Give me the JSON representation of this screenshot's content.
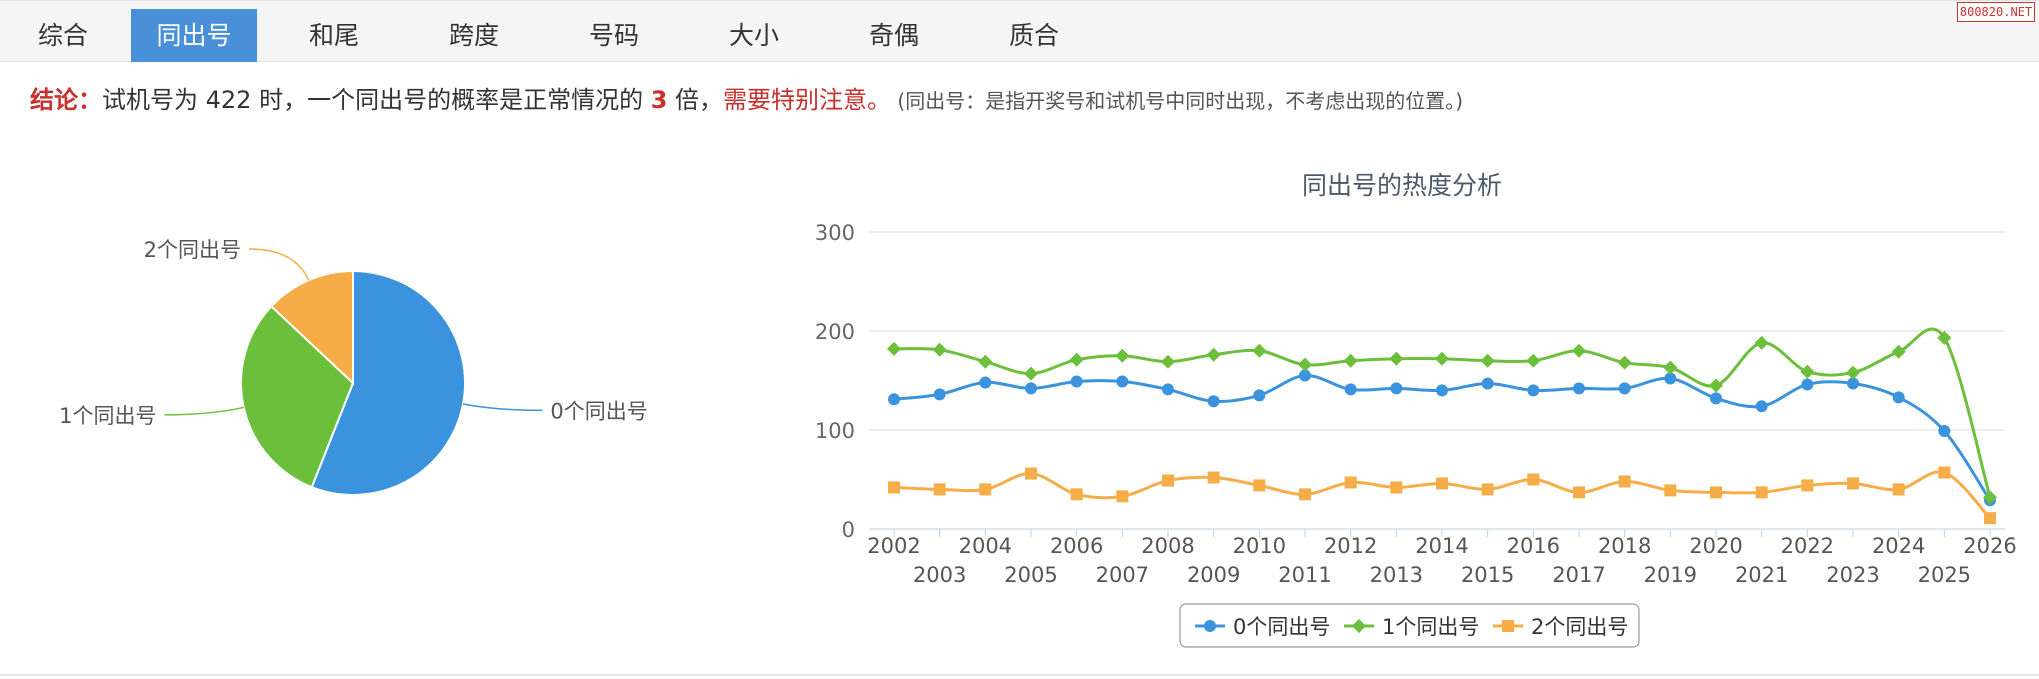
{
  "tabs": [
    {
      "label": "综合",
      "active": false
    },
    {
      "label": "同出号",
      "active": true
    },
    {
      "label": "和尾",
      "active": false
    },
    {
      "label": "跨度",
      "active": false
    },
    {
      "label": "号码",
      "active": false
    },
    {
      "label": "大小",
      "active": false
    },
    {
      "label": "奇偶",
      "active": false
    },
    {
      "label": "质合",
      "active": false
    }
  ],
  "watermark": "800820.NET",
  "conclusion": {
    "lead": "结论：",
    "text1": "试机号为 422 时，一个同出号的概率是正常情况的 ",
    "multiple": "3",
    "text2": " 倍，",
    "warning": "需要特别注意。",
    "note": " (同出号：是指开奖号和试机号中同时出现，不考虑出现的位置。)"
  },
  "colors": {
    "zero": "#3a93dc",
    "one": "#6cbf3b",
    "two": "#f6ad48",
    "tab_active": "#4a90d9",
    "highlight": "#c9302c"
  },
  "chart_data": [
    {
      "type": "pie",
      "labels": [
        "0个同出号",
        "1个同出号",
        "2个同出号"
      ],
      "values": [
        56,
        31,
        13
      ]
    },
    {
      "type": "line",
      "title": "同出号的热度分析",
      "x": [
        2002,
        2003,
        2004,
        2005,
        2006,
        2007,
        2008,
        2009,
        2010,
        2011,
        2012,
        2013,
        2014,
        2015,
        2016,
        2017,
        2018,
        2019,
        2020,
        2021,
        2022,
        2023,
        2024,
        2025,
        2026
      ],
      "ylim": [
        0,
        300
      ],
      "yticks": [
        0,
        100,
        200,
        300
      ],
      "grid": true,
      "legend": "bottom-center",
      "series": [
        {
          "name": "0个同出号",
          "marker": "circle",
          "values": [
            131,
            136,
            148,
            142,
            149,
            149,
            141,
            129,
            135,
            155,
            141,
            142,
            140,
            147,
            140,
            142,
            142,
            152,
            132,
            124,
            146,
            147,
            133,
            99,
            29
          ]
        },
        {
          "name": "1个同出号",
          "marker": "diamond",
          "values": [
            182,
            181,
            169,
            157,
            171,
            175,
            169,
            176,
            180,
            166,
            170,
            172,
            172,
            170,
            170,
            180,
            168,
            163,
            145,
            188,
            159,
            158,
            179,
            193,
            32
          ]
        },
        {
          "name": "2个同出号",
          "marker": "square",
          "values": [
            42,
            40,
            40,
            56,
            35,
            33,
            49,
            52,
            44,
            35,
            47,
            42,
            46,
            40,
            50,
            37,
            48,
            39,
            37,
            37,
            44,
            46,
            40,
            57,
            11
          ]
        }
      ]
    }
  ]
}
